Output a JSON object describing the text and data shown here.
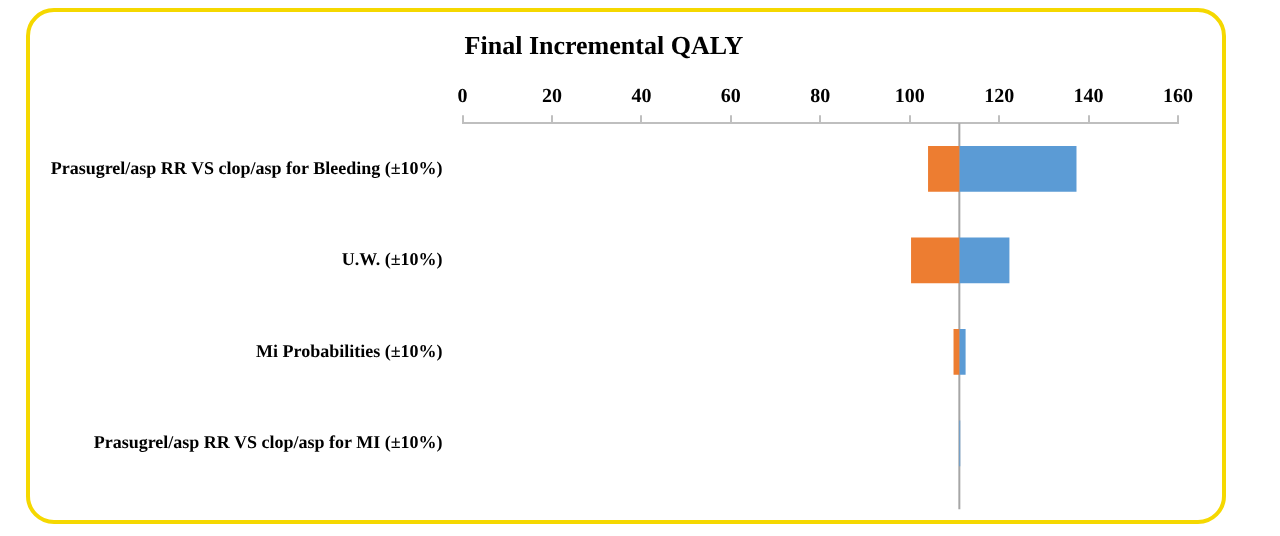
{
  "chart_data": {
    "type": "bar",
    "orientation": "horizontal",
    "title": "Final Incremental QALY",
    "categories": [
      "Prasugrel/asp RR VS clop/asp for Bleeding (±10%)",
      "U.W. (±10%)",
      "Mi Probabilities (±10%)",
      "Prasugrel/asp RR VS clop/asp for MI (±10%)"
    ],
    "series": [
      {
        "color": "#ed7d31",
        "base": [
          104.1,
          100.3,
          109.8,
          null
        ],
        "values": [
          7.0,
          10.8,
          1.3,
          null
        ]
      },
      {
        "color": "#5b9bd5",
        "base": [
          111.1,
          111.1,
          111.1,
          111.1
        ],
        "values": [
          26.2,
          11.2,
          1.4,
          0.2
        ]
      }
    ],
    "xlim": [
      0,
      160
    ],
    "xticks": [
      0,
      20,
      40,
      60,
      80,
      100,
      120,
      140,
      160
    ],
    "ref_lines": [
      {
        "axis": "x",
        "value": 111.1,
        "color": "#a6a6a6"
      }
    ],
    "grid": false,
    "legend": false
  }
}
